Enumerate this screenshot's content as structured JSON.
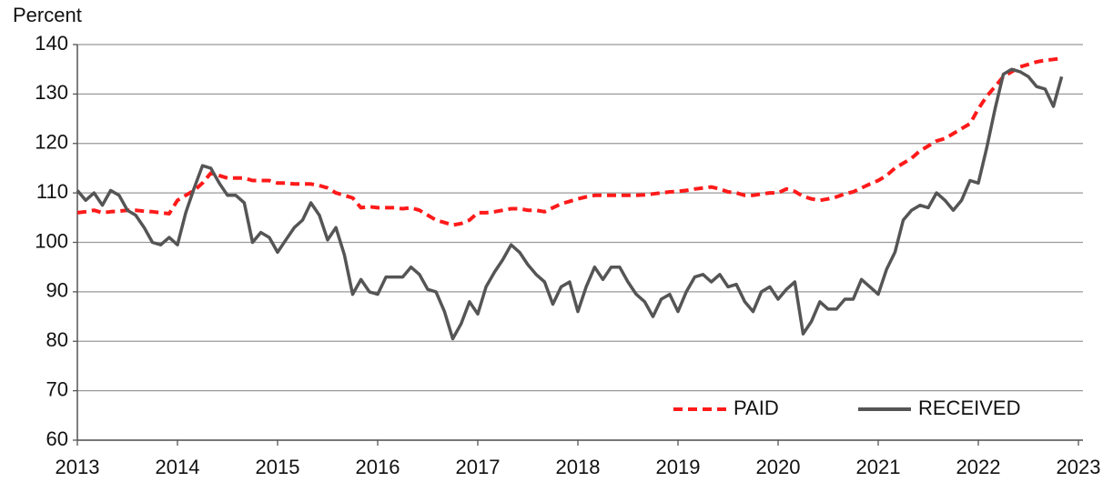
{
  "chart_data": {
    "type": "line",
    "ylabel": "Percent",
    "xlim": [
      2013,
      2023.1
    ],
    "xticks": [
      2013,
      2014,
      2015,
      2016,
      2017,
      2018,
      2019,
      2020,
      2021,
      2022,
      2023
    ],
    "ylim": [
      60,
      140
    ],
    "yticks": [
      60,
      70,
      80,
      90,
      100,
      110,
      120,
      130,
      140
    ],
    "grid": true,
    "legend": "bottom-right",
    "x": [
      2013,
      2013.083,
      2013.167,
      2013.25,
      2013.333,
      2013.417,
      2013.5,
      2013.583,
      2013.667,
      2013.75,
      2013.833,
      2013.917,
      2014,
      2014.083,
      2014.167,
      2014.25,
      2014.333,
      2014.417,
      2014.5,
      2014.583,
      2014.667,
      2014.75,
      2014.833,
      2014.917,
      2015,
      2015.083,
      2015.167,
      2015.25,
      2015.333,
      2015.417,
      2015.5,
      2015.583,
      2015.667,
      2015.75,
      2015.833,
      2015.917,
      2016,
      2016.083,
      2016.167,
      2016.25,
      2016.333,
      2016.417,
      2016.5,
      2016.583,
      2016.667,
      2016.75,
      2016.833,
      2016.917,
      2017,
      2017.083,
      2017.167,
      2017.25,
      2017.333,
      2017.417,
      2017.5,
      2017.583,
      2017.667,
      2017.75,
      2017.833,
      2017.917,
      2018,
      2018.083,
      2018.167,
      2018.25,
      2018.333,
      2018.417,
      2018.5,
      2018.583,
      2018.667,
      2018.75,
      2018.833,
      2018.917,
      2019,
      2019.083,
      2019.167,
      2019.25,
      2019.333,
      2019.417,
      2019.5,
      2019.583,
      2019.667,
      2019.75,
      2019.833,
      2019.917,
      2020,
      2020.083,
      2020.167,
      2020.25,
      2020.333,
      2020.417,
      2020.5,
      2020.583,
      2020.667,
      2020.75,
      2020.833,
      2020.917,
      2021,
      2021.083,
      2021.167,
      2021.25,
      2021.333,
      2021.417,
      2021.5,
      2021.583,
      2021.667,
      2021.75,
      2021.833,
      2021.917,
      2022,
      2022.083,
      2022.167,
      2022.25,
      2022.333,
      2022.417,
      2022.5,
      2022.583,
      2022.667,
      2022.75,
      2022.833
    ],
    "series": [
      {
        "name": "PAID",
        "color": "#ff1a1a",
        "linestyle": "dashed",
        "values": [
          106,
          106.2,
          106.5,
          106,
          106.2,
          106.3,
          106.5,
          106.5,
          106.3,
          106.2,
          106,
          105.8,
          108.5,
          109.5,
          110.5,
          112,
          114,
          113.5,
          113,
          113,
          113,
          112.5,
          112.5,
          112.5,
          112,
          112,
          111.8,
          111.8,
          111.8,
          111.5,
          111,
          110,
          109.5,
          109,
          107,
          107.2,
          107,
          107,
          107,
          106.8,
          107,
          106.5,
          105.5,
          104.5,
          104,
          103.5,
          103.8,
          104.5,
          106,
          106,
          106.2,
          106.5,
          106.8,
          106.8,
          106.5,
          106.5,
          106.2,
          107,
          107.8,
          108.3,
          108.8,
          109.2,
          109.5,
          109.5,
          109.5,
          109.5,
          109.5,
          109.5,
          109.6,
          109.8,
          110,
          110.2,
          110.3,
          110.5,
          110.8,
          111,
          111.2,
          110.8,
          110.2,
          110,
          109.5,
          109.5,
          109.8,
          110,
          110,
          110.8,
          110.3,
          109.3,
          108.8,
          108.5,
          108.8,
          109.2,
          109.8,
          110.2,
          111,
          111.8,
          112.5,
          113.5,
          115,
          116,
          117,
          118.5,
          119.5,
          120.5,
          121,
          122,
          123,
          124,
          127,
          129.5,
          131.5,
          133.5,
          134.5,
          135.5,
          136,
          136.5,
          136.8,
          137,
          137.2
        ]
      },
      {
        "name": "RECEIVED",
        "color": "#555555",
        "linestyle": "solid",
        "values": [
          110.5,
          108.5,
          110,
          107.5,
          110.5,
          109.5,
          106.5,
          105.5,
          103,
          100,
          99.5,
          101,
          99.5,
          106,
          111,
          115.5,
          115,
          112,
          109.5,
          109.5,
          108,
          100,
          102,
          101,
          98,
          100.5,
          103,
          104.5,
          108,
          105.5,
          100.5,
          103,
          97.5,
          89.5,
          92.5,
          90,
          89.5,
          93,
          93,
          93,
          95,
          93.5,
          90.5,
          90,
          86,
          80.5,
          83.5,
          88,
          85.5,
          91,
          94,
          96.5,
          99.5,
          98,
          95.5,
          93.5,
          92,
          87.5,
          91,
          92,
          86,
          91,
          95,
          92.5,
          95,
          95,
          92,
          89.5,
          88,
          85,
          88.5,
          89.5,
          86,
          90,
          93,
          93.5,
          92,
          93.5,
          91,
          91.5,
          88,
          86,
          90,
          91,
          88.5,
          90.5,
          92,
          81.5,
          84,
          88,
          86.5,
          86.5,
          88.5,
          88.5,
          92.5,
          91,
          89.5,
          94.5,
          98,
          104.5,
          106.5,
          107.5,
          107,
          110,
          108.5,
          106.5,
          108.5,
          112.5,
          112,
          119,
          127,
          134,
          135,
          134.5,
          133.5,
          131.5,
          131,
          127.5,
          133.5
        ]
      }
    ]
  }
}
